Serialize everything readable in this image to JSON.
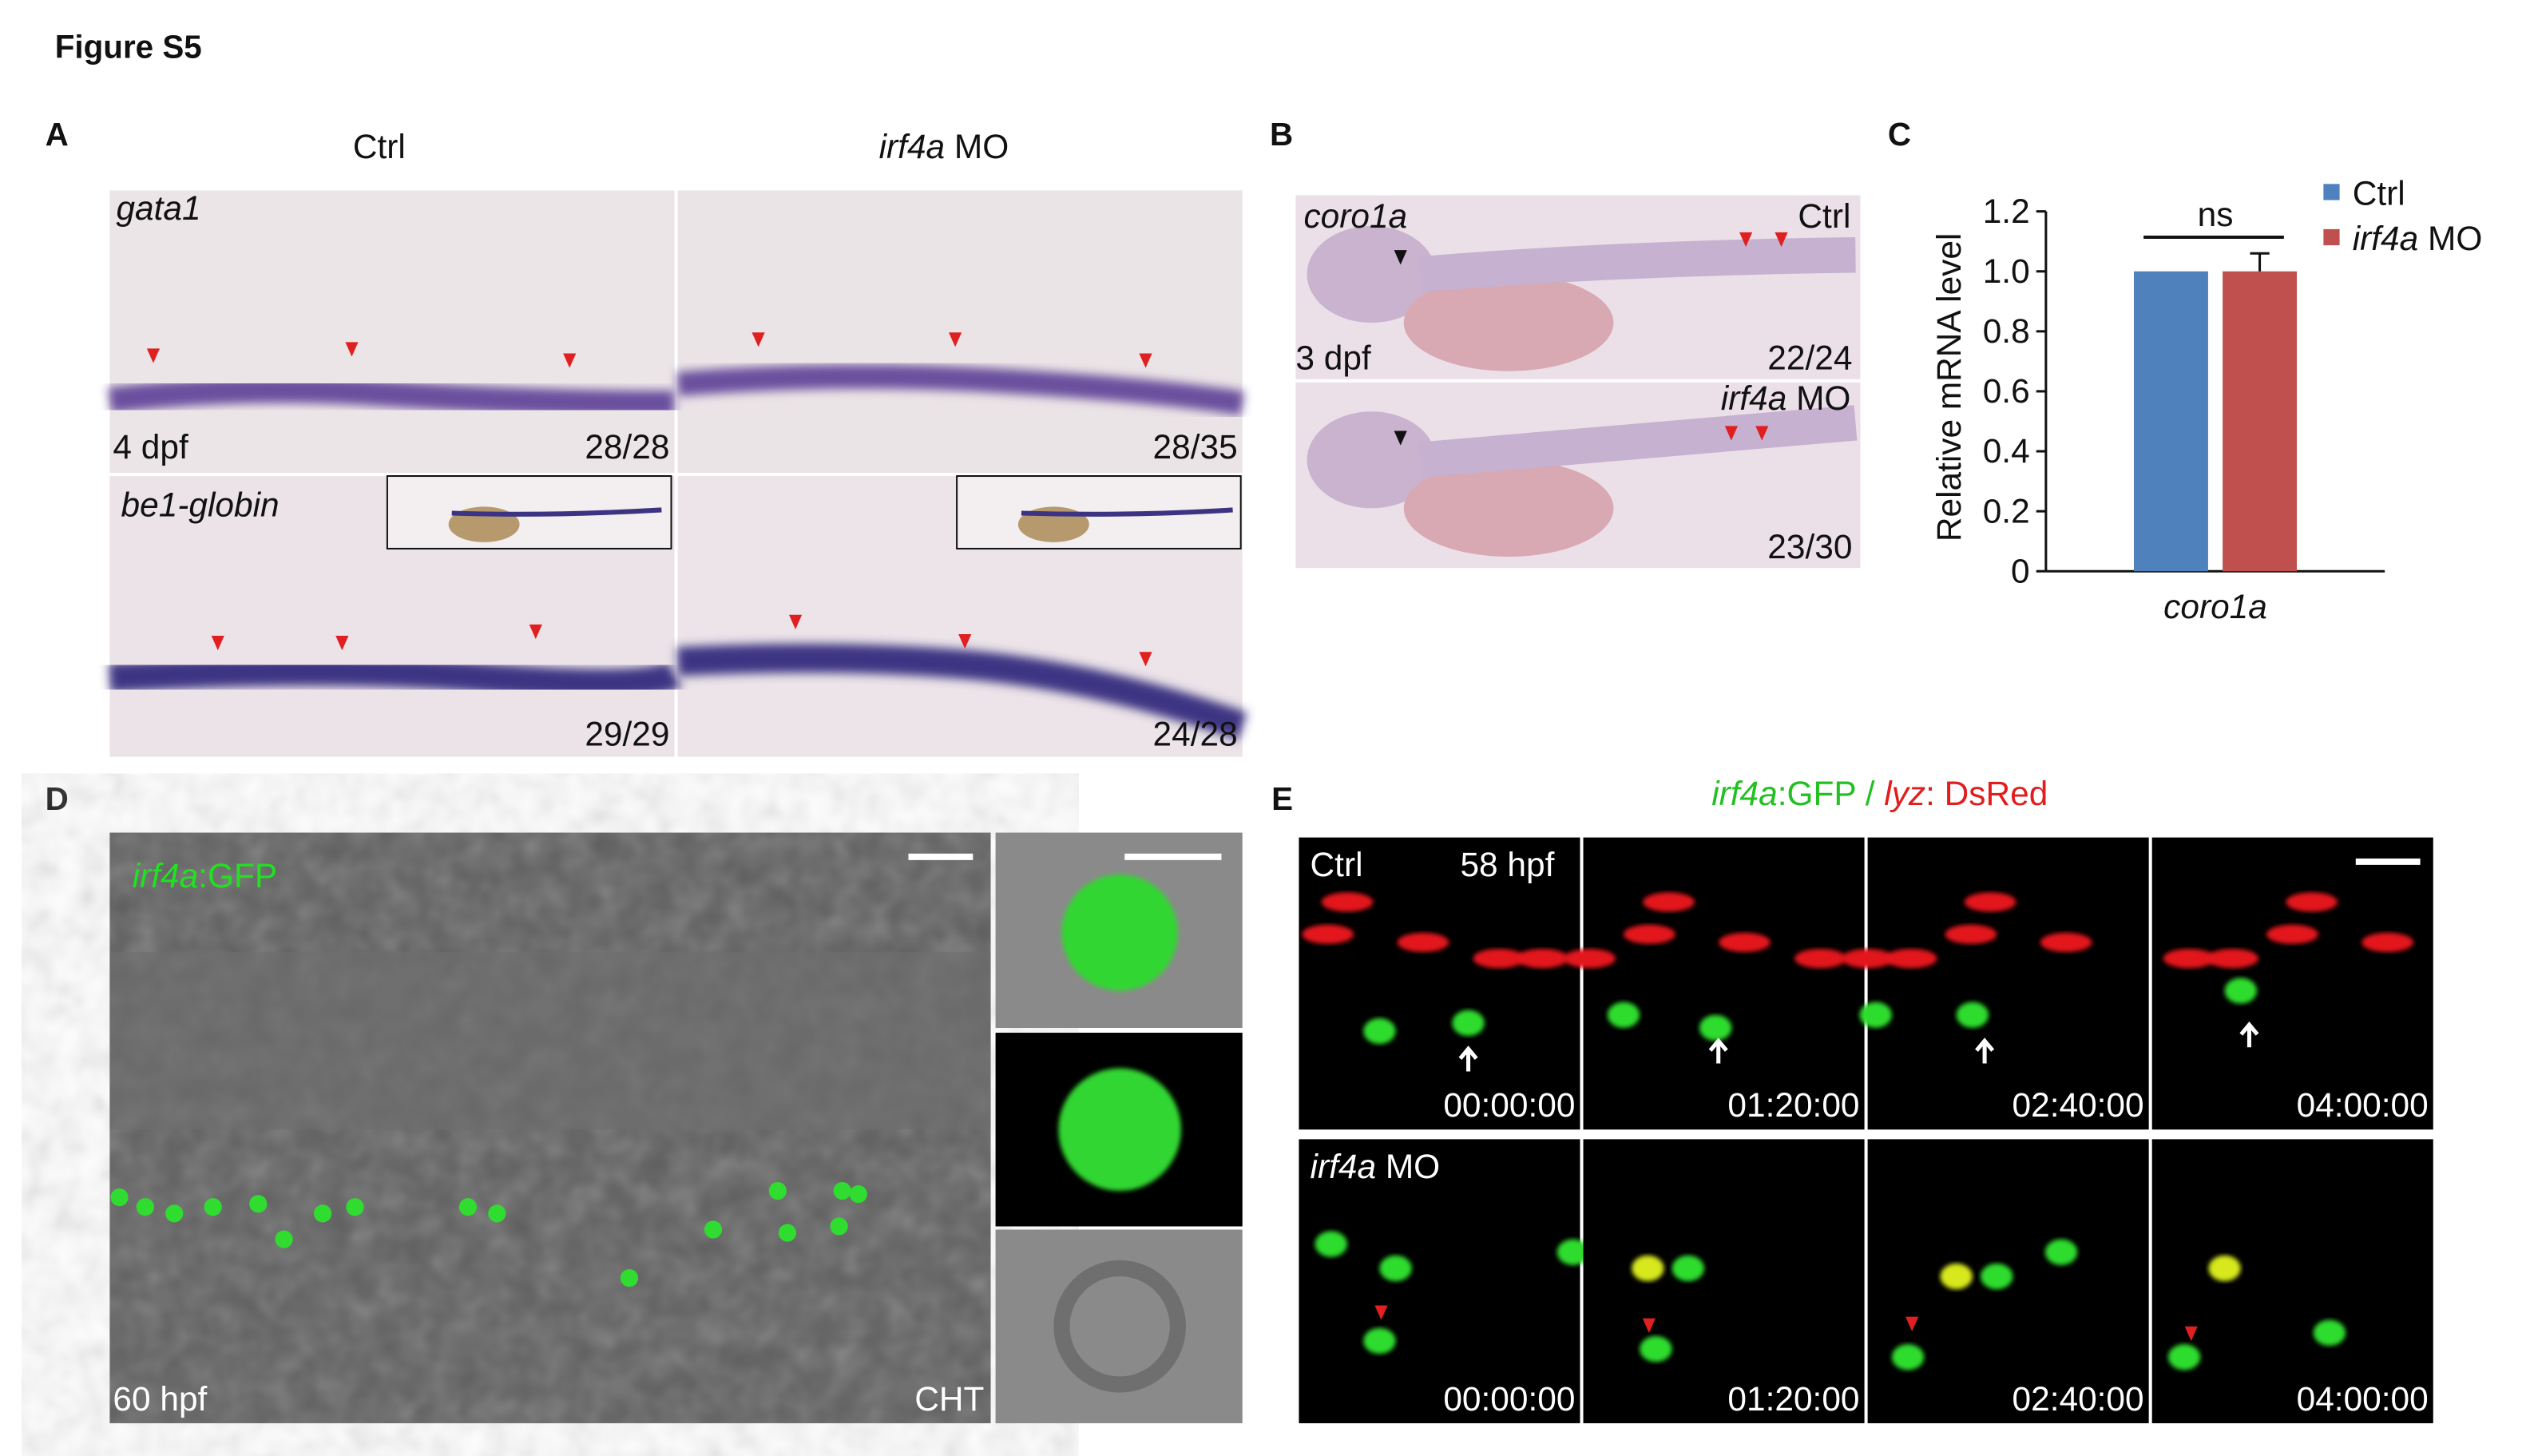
{
  "figure_title": "Figure S5",
  "panel_a": {
    "label": "A",
    "columns": [
      "Ctrl",
      "irf4a MO"
    ],
    "rows": [
      {
        "probe": "gata1",
        "stage": "4 dpf",
        "counts": [
          "28/28",
          "28/35"
        ]
      },
      {
        "probe": "be1-globin",
        "counts": [
          "29/29",
          "24/28"
        ]
      }
    ]
  },
  "panel_b": {
    "label": "B",
    "probe": "coro1a",
    "stage": "3 dpf",
    "conditions": [
      {
        "name": "Ctrl",
        "count": "22/24"
      },
      {
        "name": "irf4a MO",
        "count": "23/30"
      }
    ]
  },
  "panel_c": {
    "label": "C"
  },
  "chart_data": {
    "type": "bar",
    "ylabel": "Relative mRNA level",
    "categories": [
      "coro1a"
    ],
    "series": [
      {
        "name": "Ctrl",
        "color": "#4f81bd",
        "values": [
          1
        ]
      },
      {
        "name": "irf4a MO",
        "color": "#c0504d",
        "values": [
          1
        ],
        "errors": [
          0.06
        ]
      }
    ],
    "ylim": [
      0,
      1.2
    ],
    "yticks": [
      0,
      0.2,
      0.4,
      0.6,
      0.8,
      {
        "value": 1,
        "label": "1.0"
      },
      1.2
    ],
    "annotation": "ns",
    "legend": "right"
  },
  "panel_d": {
    "label": "D",
    "marker": [
      "irf4a",
      ":GFP"
    ],
    "stage": "60 hpf",
    "region": "CHT"
  },
  "panel_e": {
    "label": "E",
    "title_parts": [
      "irf4a",
      ":GFP / ",
      "lyz",
      ": DsRed"
    ],
    "rows": [
      {
        "name": "Ctrl",
        "stage": "58 hpf",
        "times": [
          "00:00:00",
          "01:20:00",
          "02:40:00",
          "04:00:00"
        ]
      },
      {
        "name": "irf4a MO",
        "times": [
          "00:00:00",
          "01:20:00",
          "02:40:00",
          "04:00:00"
        ]
      }
    ]
  }
}
